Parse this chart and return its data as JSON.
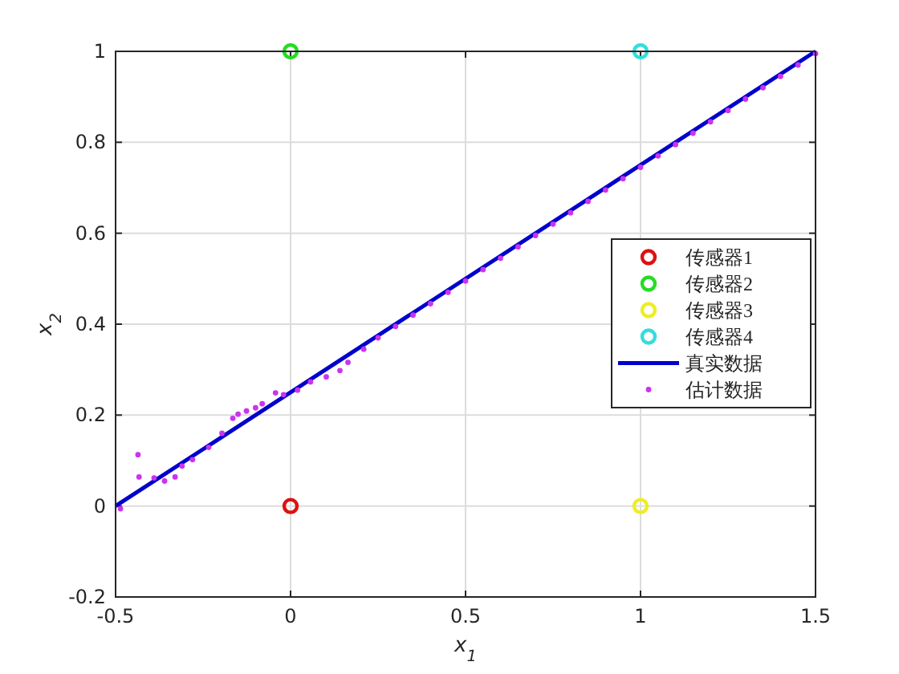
{
  "chart_data": {
    "type": "scatter",
    "xlabel": "x$_{1}$",
    "ylabel": "x$_{2}$",
    "xlim": [
      -0.5,
      1.5
    ],
    "ylim": [
      -0.2,
      1
    ],
    "xticks": [
      -0.5,
      0,
      0.5,
      1,
      1.5
    ],
    "yticks": [
      -0.2,
      0,
      0.2,
      0.4,
      0.6,
      0.8,
      1
    ],
    "grid": true,
    "legend": "right",
    "series": [
      {
        "name": "传感器1",
        "color": "#dd1111",
        "x": [
          0
        ],
        "values": [
          0
        ],
        "marker": "circle"
      },
      {
        "name": "传感器2",
        "color": "#22dd22",
        "x": [
          0
        ],
        "values": [
          1
        ],
        "marker": "circle"
      },
      {
        "name": "传感器3",
        "color": "#eeee22",
        "x": [
          1
        ],
        "values": [
          0
        ],
        "marker": "circle"
      },
      {
        "name": "传感器4",
        "color": "#33dddd",
        "x": [
          1
        ],
        "values": [
          1
        ],
        "marker": "circle"
      },
      {
        "name": "真实数据",
        "type": "line",
        "color": "#0000cc",
        "x": [
          -0.5,
          1.5
        ],
        "values": [
          0,
          1
        ],
        "marker": "none"
      },
      {
        "name": "估计数据",
        "marker": "circle",
        "color": "#cc33ee",
        "x": [
          -0.486,
          -0.436,
          -0.433,
          -0.39,
          -0.36,
          -0.33,
          -0.31,
          -0.28,
          -0.234,
          -0.196,
          -0.165,
          -0.15,
          -0.126,
          -0.1,
          -0.081,
          -0.043,
          -0.02,
          0.02,
          0.057,
          0.102,
          0.141,
          0.164,
          0.209,
          0.25,
          0.3,
          0.35,
          0.4,
          0.45,
          0.5,
          0.55,
          0.6,
          0.65,
          0.7,
          0.75,
          0.8,
          0.85,
          0.9,
          0.95,
          1.0,
          1.05,
          1.1,
          1.15,
          1.2,
          1.25,
          1.3,
          1.35,
          1.4,
          1.45,
          1.5
        ],
        "values": [
          -0.006,
          0.113,
          0.064,
          0.062,
          0.055,
          0.064,
          0.088,
          0.102,
          0.129,
          0.16,
          0.193,
          0.202,
          0.209,
          0.216,
          0.225,
          0.249,
          0.245,
          0.255,
          0.273,
          0.284,
          0.298,
          0.316,
          0.345,
          0.37,
          0.395,
          0.42,
          0.445,
          0.47,
          0.495,
          0.52,
          0.545,
          0.57,
          0.595,
          0.62,
          0.645,
          0.67,
          0.695,
          0.72,
          0.745,
          0.77,
          0.795,
          0.82,
          0.845,
          0.87,
          0.895,
          0.92,
          0.945,
          0.97,
          0.995
        ]
      }
    ]
  }
}
